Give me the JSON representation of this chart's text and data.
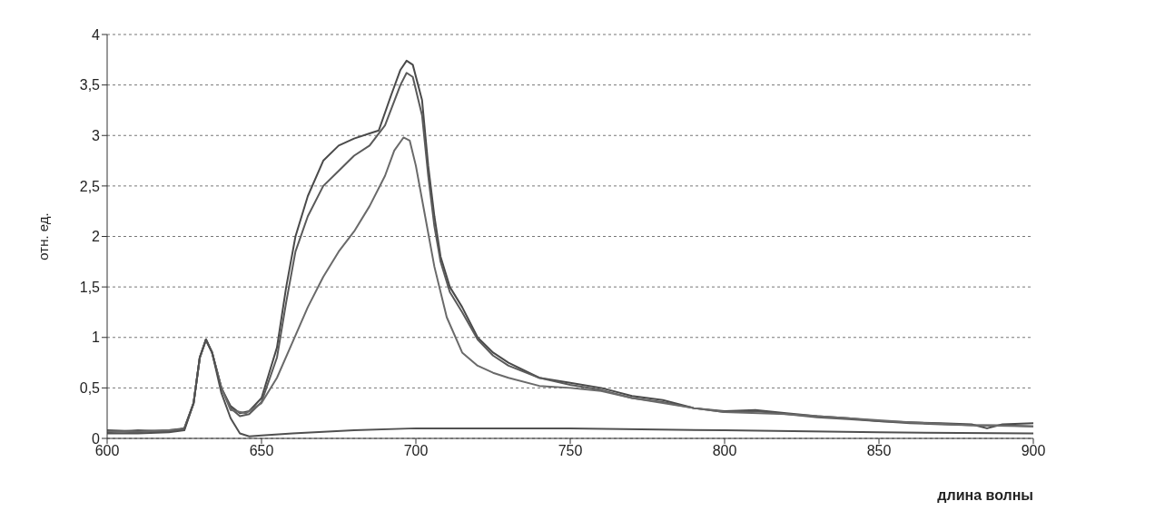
{
  "chart_data": {
    "type": "line",
    "xlabel": "длина волны",
    "ylabel": "отн. ед.",
    "xlim": [
      600,
      900
    ],
    "xticks": [
      600,
      650,
      700,
      750,
      800,
      850,
      900
    ],
    "ylim": [
      0,
      4
    ],
    "yticks": [
      0,
      {
        "value": 0.5,
        "label": "0,5"
      },
      1,
      {
        "value": 1.5,
        "label": "1,5"
      },
      2,
      {
        "value": 2.5,
        "label": "2,5"
      },
      3,
      {
        "value": 3.5,
        "label": "3,5"
      },
      4
    ],
    "grid": "y",
    "marker": "none",
    "line_style": "solid",
    "series": [
      {
        "color": "#4a4a4a",
        "x": [
          600,
          610,
          620,
          625,
          628,
          630,
          632,
          634,
          637,
          640,
          643,
          646,
          650,
          655,
          658,
          661,
          665,
          670,
          675,
          680,
          685,
          688,
          692,
          695,
          697,
          699,
          702,
          704,
          706,
          708,
          711,
          715,
          720,
          725,
          730,
          740,
          750,
          760,
          770,
          780,
          790,
          800,
          810,
          820,
          830,
          840,
          850,
          860,
          870,
          880,
          885,
          890,
          900
        ],
        "values": [
          0.08,
          0.07,
          0.08,
          0.1,
          0.35,
          0.8,
          0.98,
          0.85,
          0.5,
          0.32,
          0.25,
          0.27,
          0.4,
          0.9,
          1.5,
          2.0,
          2.4,
          2.75,
          2.9,
          2.97,
          3.02,
          3.05,
          3.4,
          3.65,
          3.74,
          3.7,
          3.35,
          2.7,
          2.2,
          1.8,
          1.5,
          1.3,
          1.0,
          0.85,
          0.75,
          0.6,
          0.55,
          0.5,
          0.42,
          0.38,
          0.3,
          0.27,
          0.28,
          0.25,
          0.22,
          0.2,
          0.17,
          0.16,
          0.15,
          0.14,
          0.1,
          0.14,
          0.15
        ]
      },
      {
        "color": "#5a5a5a",
        "x": [
          600,
          610,
          620,
          625,
          628,
          630,
          632,
          634,
          637,
          640,
          643,
          646,
          650,
          655,
          658,
          661,
          665,
          670,
          675,
          680,
          685,
          690,
          695,
          697,
          699,
          702,
          704,
          706,
          708,
          711,
          715,
          720,
          725,
          730,
          740,
          750,
          760,
          770,
          780,
          790,
          800,
          810,
          820,
          830,
          840,
          850,
          860,
          870,
          880,
          890,
          900
        ],
        "values": [
          0.06,
          0.08,
          0.07,
          0.1,
          0.35,
          0.8,
          0.98,
          0.85,
          0.5,
          0.3,
          0.22,
          0.24,
          0.36,
          0.8,
          1.35,
          1.85,
          2.2,
          2.5,
          2.65,
          2.8,
          2.9,
          3.1,
          3.5,
          3.62,
          3.58,
          3.2,
          2.6,
          2.1,
          1.75,
          1.45,
          1.25,
          0.98,
          0.82,
          0.72,
          0.6,
          0.53,
          0.48,
          0.4,
          0.36,
          0.3,
          0.26,
          0.27,
          0.24,
          0.21,
          0.19,
          0.17,
          0.15,
          0.14,
          0.13,
          0.13,
          0.12
        ]
      },
      {
        "color": "#6a6a6a",
        "x": [
          600,
          610,
          620,
          625,
          628,
          630,
          632,
          634,
          637,
          640,
          645,
          650,
          655,
          660,
          665,
          670,
          675,
          680,
          685,
          690,
          693,
          696,
          698,
          700,
          703,
          706,
          710,
          715,
          720,
          725,
          730,
          740,
          750,
          760,
          770,
          780,
          790,
          800,
          820,
          840,
          860,
          880,
          900
        ],
        "values": [
          0.07,
          0.06,
          0.08,
          0.09,
          0.35,
          0.8,
          0.97,
          0.85,
          0.5,
          0.28,
          0.25,
          0.35,
          0.6,
          0.95,
          1.3,
          1.6,
          1.85,
          2.05,
          2.3,
          2.6,
          2.85,
          2.98,
          2.95,
          2.7,
          2.2,
          1.7,
          1.2,
          0.85,
          0.72,
          0.65,
          0.6,
          0.52,
          0.5,
          0.47,
          0.4,
          0.35,
          0.3,
          0.26,
          0.24,
          0.2,
          0.16,
          0.13,
          0.12
        ]
      },
      {
        "color": "#505050",
        "x": [
          600,
          610,
          620,
          625,
          628,
          630,
          632,
          634,
          637,
          640,
          643,
          646,
          650,
          660,
          680,
          700,
          720,
          750,
          800,
          850,
          900
        ],
        "values": [
          0.05,
          0.05,
          0.06,
          0.08,
          0.35,
          0.8,
          0.98,
          0.85,
          0.45,
          0.2,
          0.05,
          0.02,
          0.03,
          0.05,
          0.08,
          0.1,
          0.1,
          0.1,
          0.08,
          0.06,
          0.05
        ]
      }
    ]
  }
}
